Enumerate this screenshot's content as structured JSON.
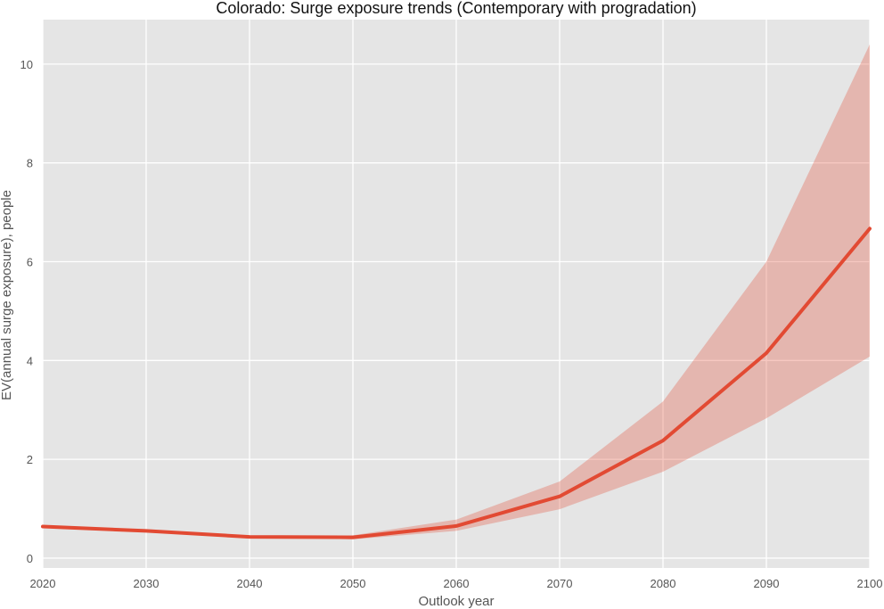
{
  "chart_data": {
    "type": "line",
    "title": "Colorado: Surge exposure trends (Contemporary with progradation)",
    "xlabel": "Outlook year",
    "ylabel": "EV(annual surge exposure), people",
    "xlim": [
      2020,
      2100
    ],
    "ylim": [
      -0.2,
      10.9
    ],
    "x_ticks": [
      2020,
      2030,
      2040,
      2050,
      2060,
      2070,
      2080,
      2090,
      2100
    ],
    "y_ticks": [
      0,
      2,
      4,
      6,
      8,
      10
    ],
    "grid": true,
    "legend": "none",
    "series": [
      {
        "x": [
          2020,
          2030,
          2040,
          2050,
          2060,
          2070,
          2080,
          2090,
          2100
        ],
        "values": [
          0.64,
          0.55,
          0.43,
          0.42,
          0.65,
          1.25,
          2.38,
          4.15,
          6.67
        ],
        "lower": [
          0.64,
          0.55,
          0.43,
          0.38,
          0.55,
          0.99,
          1.75,
          2.83,
          4.08
        ],
        "upper": [
          0.64,
          0.55,
          0.43,
          0.46,
          0.78,
          1.55,
          3.17,
          6.0,
          10.4
        ],
        "color": "#e24a33",
        "band_color": "#e24a33"
      }
    ]
  },
  "colors": {
    "plot_background": "#e5e5e5",
    "grid": "#ffffff",
    "line": "#e24a33"
  }
}
